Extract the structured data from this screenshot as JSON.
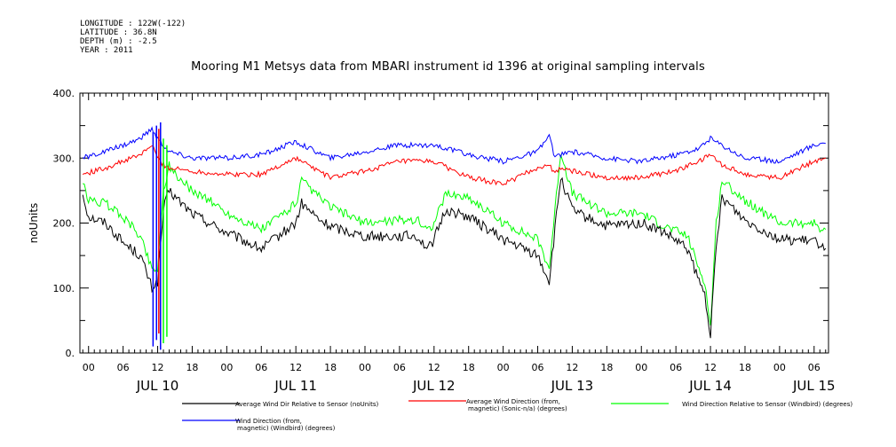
{
  "header": {
    "longitude": "LONGITUDE : 122W(-122)",
    "latitude": "LATITUDE : 36.8N",
    "depth": "DEPTH (m) : -2.5",
    "year": "YEAR : 2011"
  },
  "chart_data": {
    "type": "line",
    "title": "Mooring M1 Metsys data from MBARI instrument id 1396 at original sampling intervals",
    "ylabel": "noUnits",
    "xlabel": "",
    "ylim": [
      0,
      400
    ],
    "y_ticks": [
      "0.",
      "100.",
      "200.",
      "300.",
      "400."
    ],
    "x_range_hours": [
      -1.5,
      128.5
    ],
    "hour_ticks": [
      {
        "h": 0,
        "label": "00"
      },
      {
        "h": 6,
        "label": "06"
      },
      {
        "h": 12,
        "label": "12"
      },
      {
        "h": 18,
        "label": "18"
      },
      {
        "h": 24,
        "label": "00"
      },
      {
        "h": 30,
        "label": "06"
      },
      {
        "h": 36,
        "label": "12"
      },
      {
        "h": 42,
        "label": "18"
      },
      {
        "h": 48,
        "label": "00"
      },
      {
        "h": 54,
        "label": "06"
      },
      {
        "h": 60,
        "label": "12"
      },
      {
        "h": 66,
        "label": "18"
      },
      {
        "h": 72,
        "label": "00"
      },
      {
        "h": 78,
        "label": "06"
      },
      {
        "h": 84,
        "label": "12"
      },
      {
        "h": 90,
        "label": "18"
      },
      {
        "h": 96,
        "label": "00"
      },
      {
        "h": 102,
        "label": "06"
      },
      {
        "h": 108,
        "label": "12"
      },
      {
        "h": 114,
        "label": "18"
      },
      {
        "h": 120,
        "label": "00"
      },
      {
        "h": 126,
        "label": "06"
      }
    ],
    "day_labels": [
      {
        "h": 12,
        "label": "JUL 10"
      },
      {
        "h": 36,
        "label": "JUL 11"
      },
      {
        "h": 60,
        "label": "JUL 12"
      },
      {
        "h": 84,
        "label": "JUL 13"
      },
      {
        "h": 108,
        "label": "JUL 14"
      },
      {
        "h": 126,
        "label": "JUL 15"
      }
    ],
    "grid": false,
    "legend_position": "bottom",
    "series": [
      {
        "name": "Average Wind Dir Relative to Sensor (noUnits)",
        "color": "#000000",
        "x": [
          -1,
          0,
          3,
          6,
          9,
          11,
          12,
          13,
          14,
          15,
          18,
          21,
          24,
          30,
          36,
          37,
          40,
          42,
          48,
          54,
          57,
          59,
          60,
          62,
          66,
          72,
          78,
          80,
          81,
          82,
          84,
          86,
          90,
          96,
          100,
          104,
          106,
          107,
          108,
          109,
          110,
          114,
          120,
          126,
          128
        ],
        "y": [
          245,
          210,
          200,
          170,
          150,
          100,
          110,
          220,
          250,
          240,
          215,
          200,
          185,
          160,
          200,
          230,
          205,
          195,
          180,
          180,
          180,
          160,
          175,
          220,
          210,
          175,
          150,
          110,
          190,
          270,
          220,
          210,
          195,
          200,
          185,
          160,
          110,
          90,
          30,
          160,
          240,
          205,
          175,
          172,
          165
        ]
      },
      {
        "name": "Average Wind Direction (from, magnetic) (Sonic-n/a) (degrees)",
        "color": "#ff0000",
        "x": [
          -1,
          3,
          6,
          9,
          11,
          12,
          13,
          14,
          18,
          24,
          30,
          36,
          42,
          48,
          54,
          60,
          66,
          72,
          78,
          80,
          81,
          82,
          84,
          90,
          96,
          102,
          106,
          108,
          110,
          114,
          120,
          126,
          128
        ],
        "y": [
          275,
          285,
          295,
          305,
          320,
          300,
          290,
          285,
          280,
          275,
          275,
          300,
          270,
          280,
          295,
          295,
          270,
          260,
          285,
          290,
          275,
          285,
          280,
          270,
          270,
          280,
          295,
          305,
          290,
          275,
          270,
          295,
          300
        ]
      },
      {
        "name": "Wind Direction Relative to Sensor (Windbird) (degrees)",
        "color": "#00ff00",
        "x": [
          -1,
          0,
          3,
          6,
          9,
          11,
          12,
          13,
          14,
          15,
          18,
          21,
          24,
          30,
          36,
          37,
          40,
          42,
          48,
          54,
          57,
          59,
          60,
          62,
          66,
          72,
          78,
          80,
          81,
          82,
          84,
          86,
          90,
          96,
          100,
          104,
          106,
          107,
          108,
          109,
          110,
          114,
          120,
          126,
          128
        ],
        "y": [
          260,
          235,
          230,
          210,
          180,
          130,
          130,
          250,
          290,
          275,
          250,
          235,
          215,
          190,
          230,
          265,
          240,
          225,
          200,
          205,
          205,
          190,
          200,
          245,
          240,
          200,
          175,
          130,
          220,
          310,
          245,
          235,
          215,
          215,
          195,
          180,
          130,
          110,
          40,
          200,
          265,
          235,
          200,
          200,
          185
        ]
      },
      {
        "name": "Wind Direction (from, magnetic) (Windbird) (degrees)",
        "color": "#0000ff",
        "x": [
          -1,
          3,
          6,
          9,
          11,
          12,
          13,
          14,
          18,
          24,
          30,
          36,
          42,
          48,
          54,
          60,
          66,
          72,
          78,
          80,
          81,
          82,
          84,
          90,
          96,
          102,
          106,
          108,
          110,
          114,
          120,
          126,
          128
        ],
        "y": [
          300,
          310,
          320,
          330,
          345,
          330,
          320,
          310,
          300,
          300,
          305,
          325,
          300,
          310,
          320,
          320,
          305,
          295,
          310,
          335,
          300,
          305,
          310,
          300,
          295,
          305,
          315,
          330,
          320,
          300,
          295,
          320,
          325
        ]
      }
    ]
  },
  "legend": [
    {
      "line1": "Average Wind Dir Relative to Sensor (noUnits)",
      "line2": "",
      "color": "#000000"
    },
    {
      "line1": "Average Wind Direction (from,",
      "line2": "magnetic) (Sonic-n/a) (degrees)",
      "color": "#ff0000"
    },
    {
      "line1": "Wind Direction Relative to Sensor (Windbird) (degrees)",
      "line2": "",
      "color": "#00ff00"
    },
    {
      "line1": "Wind Direction (from,",
      "line2": "magnetic) (Windbird) (degrees)",
      "color": "#0000ff"
    }
  ]
}
